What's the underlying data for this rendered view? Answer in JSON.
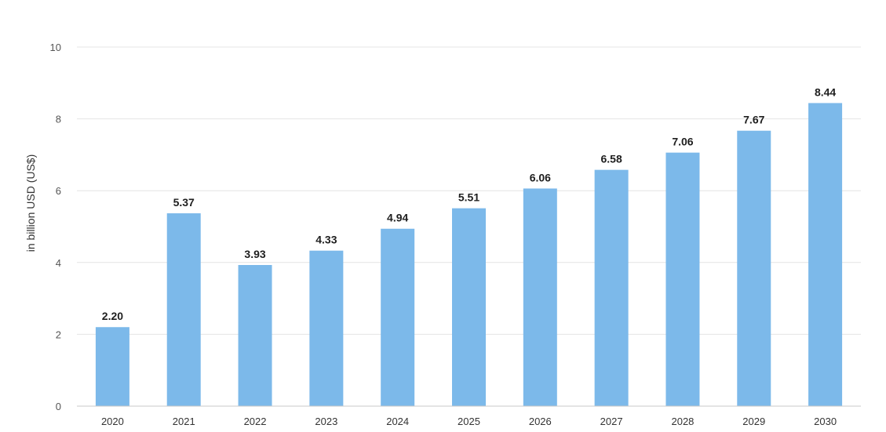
{
  "chart_data": {
    "type": "bar",
    "categories": [
      "2020",
      "2021",
      "2022",
      "2023",
      "2024",
      "2025",
      "2026",
      "2027",
      "2028",
      "2029",
      "2030"
    ],
    "values": [
      2.2,
      5.37,
      3.93,
      4.33,
      4.94,
      5.51,
      6.06,
      6.58,
      7.06,
      7.67,
      8.44
    ],
    "data_labels": [
      "2.20",
      "5.37",
      "3.93",
      "4.33",
      "4.94",
      "5.51",
      "6.06",
      "6.58",
      "7.06",
      "7.67",
      "8.44"
    ],
    "ylabel": "in billion USD (US$)",
    "xlabel": "",
    "ylim": [
      0,
      10
    ],
    "yticks": [
      "0",
      "2",
      "4",
      "6",
      "8",
      "10"
    ],
    "grid": true,
    "bar_color": "#7cb9ea"
  }
}
